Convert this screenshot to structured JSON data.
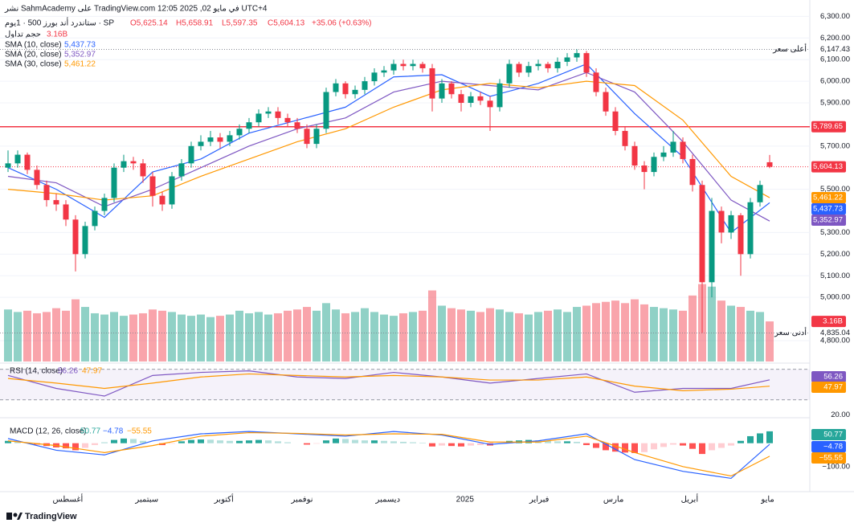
{
  "header": {
    "published": "نشر SahmAcademy على TradingView.com في مايو 02, 2025 12:05 UTC+4",
    "symbol": "ستاندرد أند بورز 500 · 1يوم · SP",
    "open": "O5,625.14",
    "high": "H5,658.91",
    "low": "L5,597.35",
    "close": "C5,604.13",
    "change": "+35.06 (+0.63%)",
    "volume_title": "حجم تداول",
    "brand": "TradingView"
  },
  "chart_data": {
    "type": "candlestick",
    "ylim": [
      4785,
      6320
    ],
    "yticks": [
      {
        "value": 6300,
        "label": "6,300.00"
      },
      {
        "value": 6200,
        "label": "6,200.00"
      },
      {
        "value": 6100,
        "label": "6,100.00"
      },
      {
        "value": 6000,
        "label": "6,000.00"
      },
      {
        "value": 5900,
        "label": "5,900.00"
      },
      {
        "value": 5700,
        "label": "5,700.00"
      },
      {
        "value": 5500,
        "label": "5,500.00"
      },
      {
        "value": 5300,
        "label": "5,300.00"
      },
      {
        "value": 5200,
        "label": "5,200.00"
      },
      {
        "value": 5100,
        "label": "5,100.00"
      },
      {
        "value": 5000,
        "label": "5,000.00"
      },
      {
        "value": 4800,
        "label": "4,800.00"
      }
    ],
    "time_labels": [
      {
        "label": "أغسطس",
        "index": 6.2
      },
      {
        "label": "سبتمبر",
        "index": 14.4
      },
      {
        "label": "أكتوبر",
        "index": 22.4
      },
      {
        "label": "نوفمبر",
        "index": 30.5
      },
      {
        "label": "ديسمبر",
        "index": 39.4
      },
      {
        "label": "2025",
        "index": 47.4
      },
      {
        "label": "فبراير",
        "index": 55.1
      },
      {
        "label": "مارس",
        "index": 62.8
      },
      {
        "label": "أبريل",
        "index": 70.7
      },
      {
        "label": "مايو",
        "index": 78.8
      }
    ],
    "candles": [
      [
        5600,
        5680,
        5580,
        5620
      ],
      [
        5620,
        5680,
        5600,
        5660
      ],
      [
        5660,
        5670,
        5570,
        5590
      ],
      [
        5590,
        5610,
        5500,
        5520
      ],
      [
        5520,
        5540,
        5420,
        5450
      ],
      [
        5450,
        5480,
        5400,
        5430
      ],
      [
        5430,
        5450,
        5330,
        5360
      ],
      [
        5360,
        5380,
        5120,
        5200
      ],
      [
        5200,
        5350,
        5180,
        5330
      ],
      [
        5330,
        5420,
        5310,
        5400
      ],
      [
        5400,
        5480,
        5380,
        5460
      ],
      [
        5460,
        5620,
        5440,
        5600
      ],
      [
        5600,
        5660,
        5580,
        5630
      ],
      [
        5630,
        5650,
        5590,
        5620
      ],
      [
        5620,
        5640,
        5530,
        5560
      ],
      [
        5560,
        5580,
        5420,
        5470
      ],
      [
        5470,
        5490,
        5400,
        5430
      ],
      [
        5430,
        5580,
        5410,
        5560
      ],
      [
        5560,
        5640,
        5540,
        5620
      ],
      [
        5620,
        5720,
        5600,
        5700
      ],
      [
        5700,
        5750,
        5680,
        5720
      ],
      [
        5720,
        5770,
        5700,
        5740
      ],
      [
        5740,
        5760,
        5690,
        5720
      ],
      [
        5720,
        5770,
        5700,
        5750
      ],
      [
        5750,
        5800,
        5730,
        5780
      ],
      [
        5780,
        5830,
        5760,
        5810
      ],
      [
        5810,
        5870,
        5790,
        5850
      ],
      [
        5850,
        5880,
        5830,
        5860
      ],
      [
        5860,
        5880,
        5800,
        5830
      ],
      [
        5830,
        5850,
        5790,
        5810
      ],
      [
        5810,
        5830,
        5760,
        5780
      ],
      [
        5780,
        5800,
        5690,
        5710
      ],
      [
        5710,
        5800,
        5690,
        5780
      ],
      [
        5780,
        5970,
        5760,
        5950
      ],
      [
        5950,
        6010,
        5930,
        5990
      ],
      [
        5990,
        6000,
        5920,
        5940
      ],
      [
        5940,
        5980,
        5920,
        5960
      ],
      [
        5960,
        6020,
        5940,
        6000
      ],
      [
        6000,
        6060,
        5980,
        6040
      ],
      [
        6040,
        6070,
        6020,
        6050
      ],
      [
        6050,
        6100,
        6030,
        6080
      ],
      [
        6080,
        6100,
        6050,
        6070
      ],
      [
        6070,
        6100,
        6050,
        6080
      ],
      [
        6080,
        6090,
        6040,
        6060
      ],
      [
        6060,
        6080,
        5860,
        5920
      ],
      [
        5920,
        6010,
        5900,
        5990
      ],
      [
        5990,
        6000,
        5920,
        5940
      ],
      [
        5940,
        5960,
        5860,
        5900
      ],
      [
        5900,
        5950,
        5880,
        5930
      ],
      [
        5930,
        5950,
        5890,
        5910
      ],
      [
        5910,
        5930,
        5770,
        5880
      ],
      [
        5880,
        6010,
        5860,
        5990
      ],
      [
        5990,
        6100,
        5970,
        6080
      ],
      [
        6080,
        6090,
        6020,
        6040
      ],
      [
        6040,
        6090,
        6020,
        6070
      ],
      [
        6070,
        6100,
        6050,
        6080
      ],
      [
        6080,
        6090,
        6040,
        6060
      ],
      [
        6060,
        6110,
        6040,
        6090
      ],
      [
        6090,
        6130,
        6070,
        6110
      ],
      [
        6110,
        6147.43,
        6090,
        6130
      ],
      [
        6130,
        6140,
        6020,
        6040
      ],
      [
        6040,
        6060,
        5930,
        5950
      ],
      [
        5950,
        5970,
        5840,
        5860
      ],
      [
        5860,
        5880,
        5750,
        5770
      ],
      [
        5770,
        5790,
        5680,
        5700
      ],
      [
        5700,
        5720,
        5590,
        5610
      ],
      [
        5610,
        5630,
        5500,
        5580
      ],
      [
        5580,
        5670,
        5560,
        5650
      ],
      [
        5650,
        5700,
        5630,
        5670
      ],
      [
        5670,
        5770,
        5650,
        5720
      ],
      [
        5720,
        5740,
        5620,
        5640
      ],
      [
        5640,
        5660,
        5490,
        5520
      ],
      [
        5520,
        5540,
        4835.04,
        5070
      ],
      [
        5070,
        5460,
        5000,
        5400
      ],
      [
        5400,
        5420,
        5250,
        5300
      ],
      [
        5300,
        5400,
        5270,
        5380
      ],
      [
        5380,
        5390,
        5100,
        5200
      ],
      [
        5200,
        5460,
        5180,
        5440
      ],
      [
        5440,
        5540,
        5420,
        5520
      ],
      [
        5625.14,
        5658.91,
        5597.35,
        5604.13
      ]
    ],
    "up_color": "#089981",
    "down_color": "#f23645",
    "last_price": {
      "value": 5604.13,
      "label": "5,604.13"
    },
    "resistance": {
      "value": 5789.65,
      "label": "5,789.65",
      "color": "#f23645"
    },
    "highest": {
      "name": "أعلى سعر",
      "value": 6147.43,
      "label": "6,147.43"
    },
    "lowest": {
      "name": "أدنى سعر",
      "value": 4835.04,
      "label": "4,835.04"
    },
    "volume": {
      "ylim": [
        0,
        10
      ],
      "values": [
        4.1,
        3.9,
        4.0,
        3.8,
        3.9,
        4.2,
        4.0,
        4.9,
        4.3,
        3.8,
        3.7,
        3.9,
        3.6,
        3.7,
        3.8,
        4.1,
        4.0,
        3.9,
        3.7,
        3.6,
        3.7,
        3.5,
        3.6,
        3.7,
        4.0,
        3.8,
        3.9,
        3.7,
        3.8,
        4.0,
        4.1,
        4.3,
        4.0,
        4.6,
        4.1,
        3.8,
        3.9,
        4.2,
        3.9,
        3.7,
        3.6,
        3.8,
        3.9,
        4.0,
        5.6,
        4.4,
        4.2,
        4.1,
        4.0,
        3.9,
        4.2,
        4.1,
        3.9,
        3.8,
        3.7,
        3.9,
        4.0,
        4.1,
        3.9,
        4.3,
        4.4,
        4.6,
        4.7,
        4.8,
        4.6,
        4.9,
        4.5,
        4.3,
        4.2,
        4.1,
        4.0,
        5.2,
        6.1,
        5.9,
        4.8,
        4.4,
        4.3,
        4.0,
        3.9,
        3.16
      ],
      "last_label": "3.16B"
    },
    "line_index": [
      0,
      5,
      10,
      15,
      20,
      25,
      30,
      35,
      40,
      45,
      50,
      55,
      60,
      65,
      70,
      75,
      79
    ],
    "series": [
      {
        "name": "SMA (10, close)",
        "color": "#2962ff",
        "values": [
          5600,
          5500,
          5370,
          5580,
          5640,
          5760,
          5820,
          5880,
          6020,
          6030,
          5930,
          5990,
          6080,
          5850,
          5650,
          5300,
          5437.73
        ],
        "last_label": "5,437.73"
      },
      {
        "name": "SMA (20, close)",
        "color": "#7e57c2",
        "values": [
          5560,
          5530,
          5420,
          5500,
          5600,
          5700,
          5780,
          5830,
          5950,
          6000,
          5980,
          5960,
          6040,
          5950,
          5720,
          5450,
          5352.97
        ],
        "last_label": "5,352.97"
      },
      {
        "name": "SMA (30, close)",
        "color": "#ff9800",
        "values": [
          5500,
          5480,
          5450,
          5470,
          5560,
          5640,
          5720,
          5780,
          5880,
          5960,
          5990,
          5970,
          6000,
          5980,
          5820,
          5560,
          5461.22
        ],
        "last_label": "5,461.22"
      }
    ],
    "rsi": {
      "name": "RSI (14, close)",
      "ylim": [
        15,
        75
      ],
      "levels": [
        70,
        30
      ],
      "yticks": [
        {
          "value": 20,
          "label": "20.00"
        }
      ],
      "series": [
        {
          "color": "#7e57c2",
          "values": [
            62,
            45,
            35,
            62,
            66,
            68,
            60,
            58,
            66,
            60,
            52,
            58,
            64,
            40,
            45,
            45,
            56.26
          ],
          "last_label": "56.26"
        },
        {
          "color": "#ff9800",
          "values": [
            58,
            52,
            45,
            52,
            60,
            64,
            62,
            60,
            62,
            60,
            56,
            56,
            60,
            48,
            42,
            44,
            47.97
          ],
          "last_label": "47.97"
        }
      ]
    },
    "macd": {
      "name": "MACD (12, 26, close)",
      "ylim": [
        -200,
        95
      ],
      "yticks": [
        {
          "value": -100,
          "label": "−100.00"
        }
      ],
      "histogram": {
        "values": [
          10,
          8,
          2,
          -6,
          -12,
          -18,
          -22,
          -30,
          -20,
          -8,
          4,
          14,
          20,
          18,
          10,
          0,
          -8,
          -2,
          8,
          14,
          16,
          15,
          12,
          10,
          10,
          12,
          14,
          12,
          8,
          4,
          0,
          -6,
          -2,
          12,
          20,
          18,
          14,
          12,
          12,
          10,
          8,
          6,
          4,
          2,
          -14,
          -10,
          -12,
          -14,
          -10,
          -8,
          -10,
          0,
          10,
          12,
          14,
          12,
          10,
          8,
          8,
          6,
          -8,
          -20,
          -30,
          -36,
          -40,
          -42,
          -38,
          -26,
          -16,
          -6,
          -10,
          -24,
          -46,
          -30,
          -20,
          -10,
          10,
          30,
          42,
          50.77
        ],
        "last_label": "50.77"
      },
      "series": [
        {
          "color": "#2962ff",
          "values": [
            20,
            -30,
            -50,
            10,
            40,
            50,
            40,
            30,
            50,
            35,
            -5,
            10,
            40,
            -70,
            -120,
            -150,
            -4.78
          ],
          "last_label": "−4.78"
        },
        {
          "color": "#ff9800",
          "values": [
            10,
            -10,
            -40,
            -10,
            30,
            45,
            42,
            35,
            40,
            38,
            5,
            5,
            30,
            -40,
            -100,
            -140,
            -55.55
          ],
          "last_label": "−55.55"
        }
      ]
    }
  }
}
